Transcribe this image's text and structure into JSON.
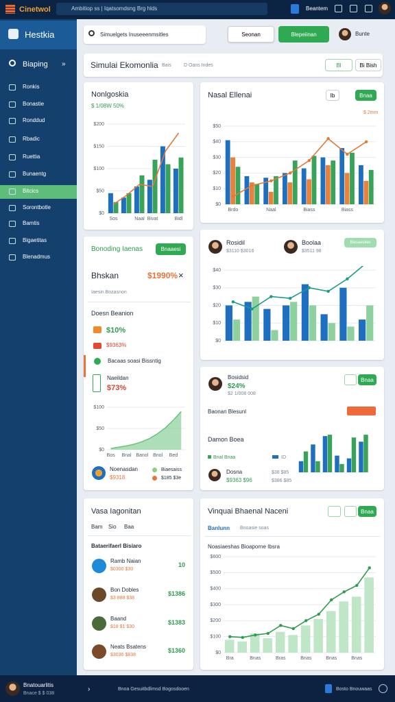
{
  "topbar": {
    "brand": "Cinetwol",
    "search": "Ambitiop ss | Iqatsomdsng Brg hlds",
    "user": "Beantem"
  },
  "sidebar": {
    "title": "Hestkia",
    "search": "Biaping",
    "items": [
      "Ronkis",
      "Bonastie",
      "Ronddud",
      "Rbadic",
      "Ruettia",
      "Bunaentg",
      "Bitcics",
      "Sorontbotle",
      "Bamtis",
      "Bigaetitas",
      "Blenadmus"
    ]
  },
  "toolbar": {
    "search": "Simuelgets Inuseeenmsitles",
    "button": "Seonan",
    "primary": "Blepeiinan",
    "user": "Bunte"
  },
  "page": {
    "title": "Simulai Ekomonlia",
    "tab": "Bais",
    "filter": "D Oans Indes",
    "actions": [
      "Bl",
      "Bi Bish"
    ]
  },
  "panels": {
    "a": {
      "title": "Nonlgoskia",
      "stat": "$ 1/08W 50%"
    },
    "b": {
      "title": "Nasal Ellenai",
      "buttons": [
        "Ib",
        "Bnaa"
      ],
      "badge": "$ 2mm"
    },
    "c": {
      "title": "Bonoding Iaenas",
      "button": "Bnaaesi",
      "label": "Bhskan",
      "value": "$1990%",
      "close": "×",
      "hint": "Iaesin Bozasnon",
      "section": "Doesn Beanion",
      "items": [
        "$10%",
        "$9363%"
      ],
      "note": "Bacaas soasi Bissntig",
      "item3": {
        "label": "Naeildan",
        "value": "$73%"
      },
      "footer": {
        "name": "Noenasdan",
        "value": "$9318",
        "right": "Biaesaiss",
        "right_value": "$185 $3e"
      }
    },
    "d": {
      "users": [
        {
          "name": "Rosidil",
          "value": "$3110 $3016"
        },
        {
          "name": "Boolaa",
          "value": "$3511 98"
        }
      ],
      "badge": "Biesaesiies"
    },
    "e": {
      "user": "Bosidsid",
      "value": "$24%",
      "sub": "$2 1/008 008",
      "button": "Bnaa",
      "row": "Baonan Blesunl",
      "section": "Damon Boea",
      "legend": [
        "Bnal Bnaa",
        "ID"
      ],
      "footer": {
        "name": "Dosna",
        "value": "$9363 $96",
        "right": "$38 $85",
        "right_value": "$386 $85"
      }
    },
    "f": {
      "title": "Vasa Iagonitan",
      "tabs": [
        "Bam",
        "Sio",
        "Baa"
      ],
      "section": "Bataerifaerl Bisiaro",
      "items": [
        {
          "name": "Ramb Naian",
          "sub": "$0300 $30",
          "value": "10"
        },
        {
          "name": "Bon Dobles",
          "sub": "$3 888 $38",
          "value": "$1386"
        },
        {
          "name": "Baand",
          "sub": "$18 $1 $30",
          "value": "$1383"
        },
        {
          "name": "Neats Bsatens",
          "sub": "$3036 $838",
          "value": "$1360"
        }
      ]
    },
    "g": {
      "title": "Vinquai Bhaenal Naceni",
      "button": "Bnaa",
      "tab": "Banlunn",
      "tab2": "Bnoasie soas",
      "section": "Noasiaeshas Bioaporne Ibsra"
    }
  },
  "bottombar": {
    "user": "Bnatouarlitis",
    "sub": "Bnace $ $ 038",
    "text": "Bnoa Gesuitbdlimsd Bogosdooen",
    "right": "Bosto Bnouwaas"
  },
  "chart_data": [
    {
      "type": "bar",
      "ylim": [
        0,
        200
      ],
      "yticks": [
        {
          "value": 0,
          "label": "$0"
        },
        {
          "value": 50,
          "label": "$50"
        },
        {
          "value": 100,
          "label": "$100"
        },
        {
          "value": 150,
          "label": "$150"
        },
        {
          "value": 200,
          "label": "$200"
        }
      ],
      "grid": true,
      "categories": [
        "Sos",
        null,
        "Naal",
        "Bivat",
        null,
        "Bidl"
      ],
      "series": [
        {
          "color": "#1f6fc0",
          "values": [
            45,
            35,
            60,
            75,
            150,
            100
          ]
        },
        {
          "color": "#3aa35a",
          "values": [
            25,
            45,
            85,
            120,
            110,
            125
          ]
        },
        {
          "type": "line",
          "color": "#e0793a",
          "values": [
            20,
            40,
            65,
            60,
            140,
            180
          ]
        }
      ]
    },
    {
      "type": "bar",
      "ylim": [
        0,
        50
      ],
      "yticks": [
        {
          "value": 0,
          "label": "$0"
        },
        {
          "value": 10,
          "label": "$10"
        },
        {
          "value": 20,
          "label": "$20"
        },
        {
          "value": 30,
          "label": "$30"
        },
        {
          "value": 40,
          "label": "$40"
        },
        {
          "value": 50,
          "label": "$50"
        }
      ],
      "grid": true,
      "categories": [
        "Brdo",
        null,
        "Naal",
        null,
        "Biass",
        null,
        "Biass",
        null
      ],
      "series": [
        {
          "color": "#1f6fc0",
          "values": [
            41,
            18,
            17,
            20,
            23,
            30,
            36,
            25
          ]
        },
        {
          "color": "#e8823a",
          "values": [
            30,
            14,
            8,
            14,
            16,
            25,
            20,
            15
          ]
        },
        {
          "color": "#3aa35a",
          "values": [
            24,
            13,
            18,
            28,
            31,
            28,
            33,
            22
          ]
        },
        {
          "type": "line",
          "color": "#e0793a",
          "markers": true,
          "values": [
            5,
            12,
            15,
            20,
            28,
            42,
            32,
            40
          ]
        }
      ]
    },
    {
      "type": "bar",
      "ylim": [
        0,
        40
      ],
      "yticks": [
        {
          "value": 0,
          "label": "$0"
        },
        {
          "value": 10,
          "label": "$10"
        },
        {
          "value": 20,
          "label": "$20"
        },
        {
          "value": 30,
          "label": "$30"
        },
        {
          "value": 40,
          "label": "$40"
        }
      ],
      "grid": true,
      "categories": [
        null,
        null,
        null,
        null,
        null,
        null,
        null,
        null
      ],
      "series": [
        {
          "color": "#1f6fc0",
          "values": [
            20,
            22,
            18,
            20,
            32,
            15,
            30,
            12
          ]
        },
        {
          "color": "#8fd19e",
          "values": [
            12,
            25,
            6,
            22,
            20,
            10,
            8,
            20
          ]
        },
        {
          "type": "line",
          "color": "#1a9b8a",
          "markers": true,
          "values": [
            22,
            18,
            25,
            24,
            30,
            28,
            35,
            44
          ]
        }
      ]
    },
    {
      "type": "bar",
      "ylim": [
        0,
        30
      ],
      "grid": false,
      "categories": [
        null,
        null,
        null,
        null,
        null,
        null
      ],
      "series": [
        {
          "color": "#1f6fc0",
          "values": [
            8,
            20,
            26,
            12,
            10,
            22
          ]
        },
        {
          "color": "#3aa35a",
          "values": [
            15,
            8,
            27,
            6,
            25,
            27
          ]
        }
      ]
    },
    {
      "type": "area",
      "ylim": [
        0,
        100
      ],
      "yticks": [
        {
          "value": 0,
          "label": "$0"
        },
        {
          "value": 50,
          "label": "$50"
        },
        {
          "value": 100,
          "label": "$100"
        }
      ],
      "grid": true,
      "categories": [
        "Bos",
        null,
        "Bnal",
        null,
        "Banol",
        null,
        "Bnol",
        null,
        "Bed",
        null
      ],
      "series": [
        {
          "color": "#6cc27e",
          "values": [
            3,
            6,
            9,
            13,
            19,
            27,
            38,
            52,
            70,
            90
          ]
        }
      ]
    },
    {
      "type": "bar",
      "ylim": [
        0,
        600
      ],
      "yticks": [
        {
          "value": 0,
          "label": "$0"
        },
        {
          "value": 100,
          "label": "$100"
        },
        {
          "value": 200,
          "label": "$200"
        },
        {
          "value": 300,
          "label": "$300"
        },
        {
          "value": 400,
          "label": "$400"
        },
        {
          "value": 500,
          "label": "$500"
        },
        {
          "value": 600,
          "label": "$600"
        }
      ],
      "grid": true,
      "categories": [
        "Bra",
        null,
        "Bnas",
        null,
        "Bras",
        null,
        "Bnas",
        null,
        "Bnas",
        null,
        "Bnas",
        null
      ],
      "series": [
        {
          "color": "#bfe6c6",
          "values": [
            80,
            70,
            120,
            90,
            130,
            110,
            170,
            210,
            260,
            320,
            350,
            470
          ]
        },
        {
          "type": "line",
          "color": "#2e9c4e",
          "markers": true,
          "values": [
            100,
            95,
            110,
            120,
            170,
            150,
            200,
            240,
            330,
            380,
            420,
            530
          ]
        }
      ]
    }
  ]
}
